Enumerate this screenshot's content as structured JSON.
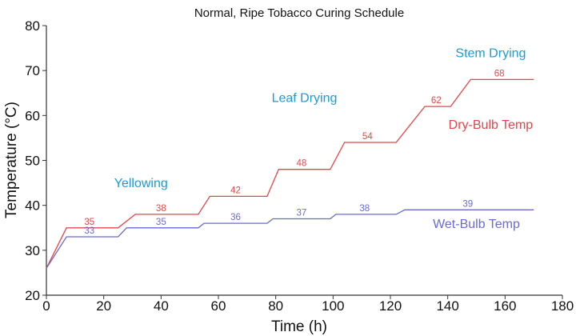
{
  "chart_data": {
    "type": "line",
    "title": "Normal, Ripe Tobacco Curing Schedule",
    "xlabel": "Time (h)",
    "ylabel": "Temperature (°C)",
    "xlim": [
      0,
      180
    ],
    "ylim": [
      20,
      80
    ],
    "xticks": [
      0,
      20,
      40,
      60,
      80,
      100,
      120,
      140,
      160,
      180
    ],
    "yticks": [
      20,
      30,
      40,
      50,
      60,
      70,
      80
    ],
    "grid": false,
    "series": [
      {
        "name": "Dry-Bulb Temp",
        "color": "#e0474c",
        "x": [
          0,
          7,
          25,
          31,
          53,
          57,
          77,
          81,
          99,
          104,
          122,
          132,
          141,
          148,
          170
        ],
        "y": [
          26,
          35,
          35,
          38,
          38,
          42,
          42,
          48,
          48,
          54,
          54,
          62,
          62,
          68,
          68
        ],
        "labels": [
          {
            "x": 15,
            "y": 35,
            "text": "35"
          },
          {
            "x": 40,
            "y": 38,
            "text": "38"
          },
          {
            "x": 66,
            "y": 42,
            "text": "42"
          },
          {
            "x": 89,
            "y": 48,
            "text": "48"
          },
          {
            "x": 112,
            "y": 54,
            "text": "54"
          },
          {
            "x": 136,
            "y": 62,
            "text": "62"
          },
          {
            "x": 158,
            "y": 68,
            "text": "68"
          }
        ]
      },
      {
        "name": "Wet-Bulb Temp",
        "color": "#6a6ad0",
        "x": [
          0,
          7,
          25,
          28,
          53,
          55,
          77,
          79,
          99,
          101,
          122,
          125,
          170
        ],
        "y": [
          26,
          33,
          33,
          35,
          35,
          36,
          36,
          37,
          37,
          38,
          38,
          39,
          39
        ],
        "labels": [
          {
            "x": 15,
            "y": 33,
            "text": "33"
          },
          {
            "x": 40,
            "y": 35,
            "text": "35"
          },
          {
            "x": 66,
            "y": 36,
            "text": "36"
          },
          {
            "x": 89,
            "y": 37,
            "text": "37"
          },
          {
            "x": 111,
            "y": 38,
            "text": "38"
          },
          {
            "x": 147,
            "y": 39,
            "text": "39"
          }
        ]
      }
    ],
    "annotations": [
      {
        "text": "Yellowing",
        "x": 33,
        "y": 44,
        "color": "#1a9bd4"
      },
      {
        "text": "Leaf Drying",
        "x": 90,
        "y": 63,
        "color": "#1a9bd4"
      },
      {
        "text": "Stem Drying",
        "x": 155,
        "y": 73,
        "color": "#1a9bd4"
      },
      {
        "text": "Dry-Bulb Temp",
        "x": 155,
        "y": 57,
        "color": "#e0474c"
      },
      {
        "text": "Wet-Bulb Temp",
        "x": 150,
        "y": 35,
        "color": "#6a6ad0"
      }
    ]
  }
}
